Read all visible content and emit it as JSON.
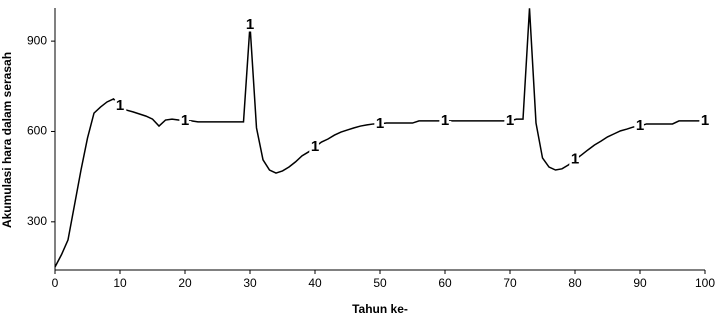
{
  "chart_data": {
    "type": "line",
    "xlabel": "Tahun ke-",
    "ylabel": "Akumulasi hara dalam serasah",
    "x": [
      0,
      1,
      2,
      3,
      4,
      5,
      6,
      7,
      8,
      9,
      10,
      11,
      12,
      13,
      14,
      15,
      16,
      17,
      18,
      19,
      20,
      21,
      22,
      23,
      24,
      25,
      26,
      27,
      28,
      29,
      30,
      31,
      32,
      33,
      34,
      35,
      36,
      37,
      38,
      39,
      40,
      41,
      42,
      43,
      44,
      45,
      46,
      47,
      48,
      49,
      50,
      51,
      52,
      53,
      54,
      55,
      56,
      57,
      58,
      59,
      60,
      61,
      62,
      63,
      64,
      65,
      66,
      67,
      68,
      69,
      70,
      71,
      72,
      73,
      74,
      75,
      76,
      77,
      78,
      79,
      80,
      81,
      82,
      83,
      84,
      85,
      86,
      87,
      88,
      89,
      90,
      91,
      92,
      93,
      94,
      95,
      96,
      97,
      98,
      99,
      100
    ],
    "series": [
      {
        "marker": "1",
        "color": "#000000",
        "values": [
          150,
          191,
          240,
          356,
          472,
          578,
          661,
          681,
          698,
          708,
          685,
          671,
          665,
          658,
          651,
          641,
          618,
          638,
          641,
          638,
          635,
          635,
          632,
          632,
          632,
          632,
          632,
          632,
          632,
          632,
          953,
          612,
          506,
          472,
          462,
          469,
          482,
          499,
          519,
          532,
          549,
          565,
          575,
          588,
          598,
          605,
          612,
          618,
          622,
          625,
          625,
          628,
          628,
          628,
          628,
          628,
          635,
          635,
          635,
          635,
          635,
          635,
          635,
          635,
          635,
          635,
          635,
          635,
          635,
          635,
          635,
          641,
          641,
          1009,
          628,
          512,
          482,
          472,
          476,
          489,
          506,
          522,
          539,
          555,
          568,
          582,
          592,
          602,
          608,
          615,
          618,
          625,
          625,
          625,
          625,
          625,
          635,
          635,
          635,
          635,
          635
        ]
      }
    ],
    "xlim": [
      0,
      100
    ],
    "xticks": [
      0,
      10,
      20,
      30,
      40,
      50,
      60,
      70,
      80,
      90,
      100
    ],
    "ylim": [
      140,
      1010
    ],
    "yticks": [
      300,
      600,
      900
    ]
  }
}
